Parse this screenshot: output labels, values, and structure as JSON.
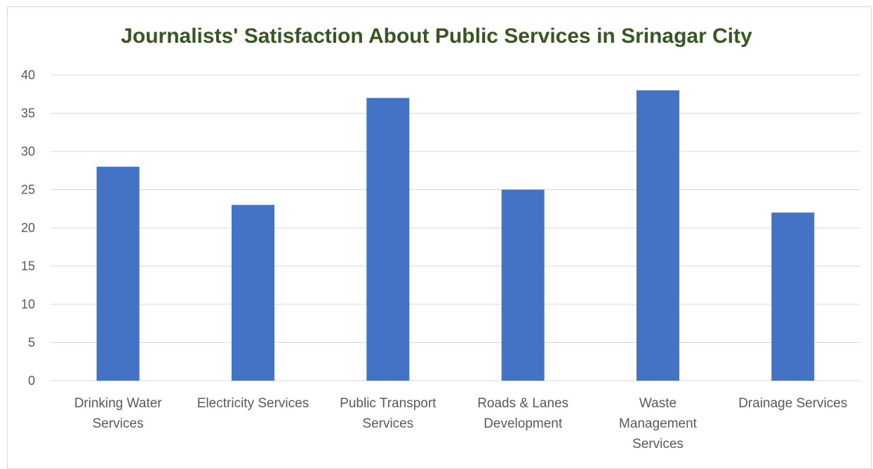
{
  "colors": {
    "bar": "#4472C4",
    "title": "#375623",
    "grid": "#d9d9d9",
    "axis_text": "#595959"
  },
  "chart_data": {
    "type": "bar",
    "title": "Journalists' Satisfaction About Public Services in Srinagar City",
    "xlabel": "",
    "ylabel": "",
    "categories": [
      "Drinking Water Services",
      "Electricity Services",
      "Public Transport Services",
      "Roads & Lanes Development",
      "Waste Management Services",
      "Drainage Services"
    ],
    "category_label_lines": [
      [
        "Drinking Water",
        "Services"
      ],
      [
        "Electricity Services"
      ],
      [
        "Public Transport",
        "Services"
      ],
      [
        "Roads & Lanes",
        "Development"
      ],
      [
        "Waste",
        "Management",
        "Services"
      ],
      [
        "Drainage Services"
      ]
    ],
    "series": [
      {
        "values": [
          28,
          23,
          37,
          25,
          38,
          22
        ]
      }
    ],
    "ylim": [
      0,
      40
    ],
    "yticks": [
      0,
      5,
      10,
      15,
      20,
      25,
      30,
      35,
      40
    ],
    "grid": true,
    "legend": "none"
  }
}
